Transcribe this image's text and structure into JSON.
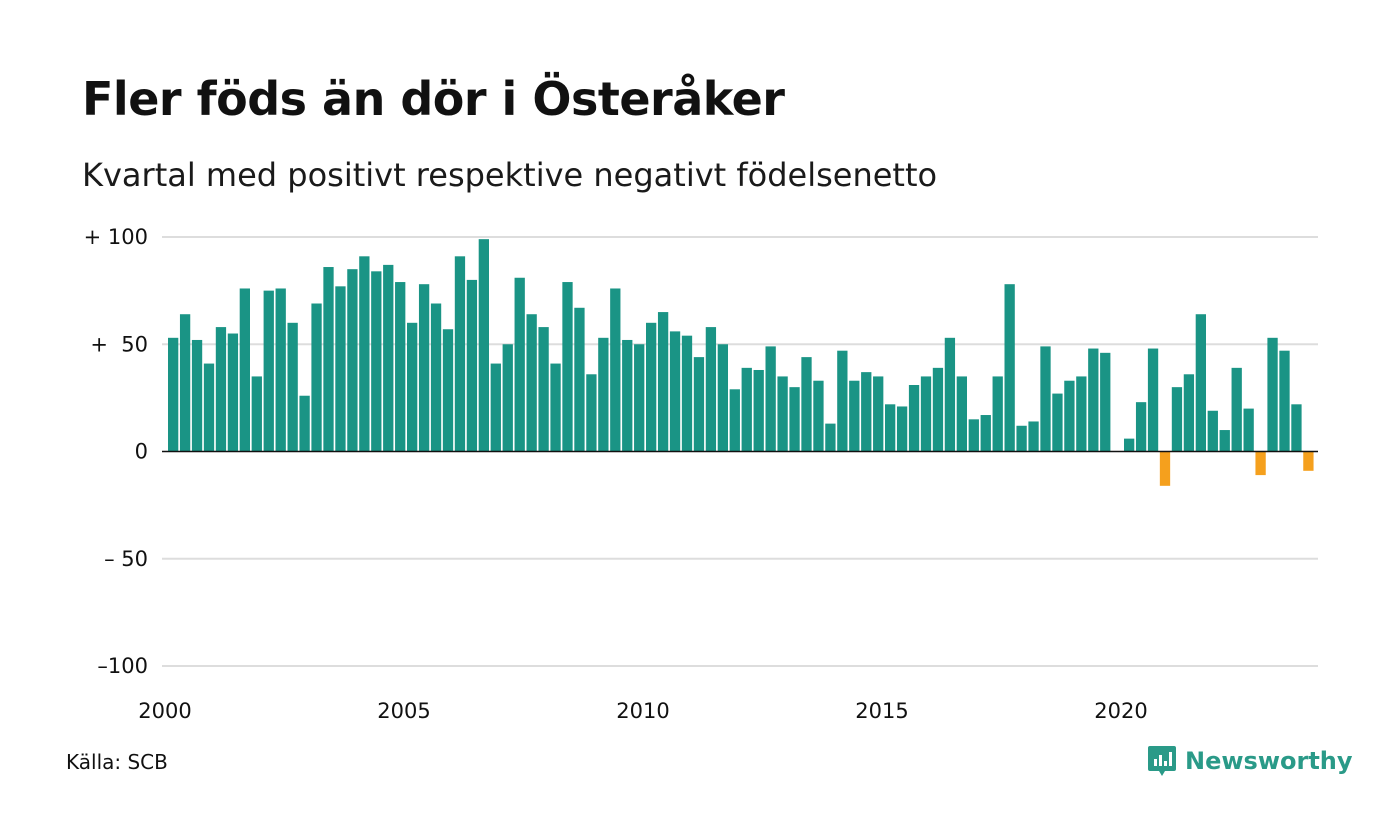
{
  "title": "Fler föds än dör i Österåker",
  "subtitle": "Kvartal med positivt respektive negativt födelsenetto",
  "source": "Källa: SCB",
  "brand": {
    "name": "Newsworthy",
    "icon": "newsworthy-logo-icon",
    "color": "#2a9a88"
  },
  "chart_data": {
    "type": "bar",
    "ylim": [
      -100,
      100
    ],
    "yticks": [
      {
        "value": 100,
        "label": "+ 100"
      },
      {
        "value": 50,
        "label": "+  50"
      },
      {
        "value": 0,
        "label": "0"
      },
      {
        "value": -50,
        "label": "– 50"
      },
      {
        "value": -100,
        "label": "–100"
      }
    ],
    "xticks": [
      {
        "year": 2000,
        "label": "2000"
      },
      {
        "year": 2005,
        "label": "2005"
      },
      {
        "year": 2010,
        "label": "2010"
      },
      {
        "year": 2015,
        "label": "2015"
      },
      {
        "year": 2020,
        "label": "2020"
      }
    ],
    "start": {
      "year": 2000,
      "quarter": 1
    },
    "grid": true,
    "colors": {
      "positive": "#1a9485",
      "negative": "#f5a01d",
      "grid": "#dddddd",
      "zero": "#111111"
    },
    "values": [
      53,
      64,
      52,
      41,
      58,
      55,
      76,
      35,
      75,
      76,
      60,
      26,
      69,
      86,
      77,
      85,
      91,
      84,
      87,
      79,
      60,
      78,
      69,
      57,
      91,
      80,
      99,
      41,
      50,
      81,
      64,
      58,
      41,
      79,
      67,
      36,
      53,
      76,
      52,
      50,
      60,
      65,
      56,
      54,
      44,
      58,
      50,
      29,
      39,
      38,
      49,
      35,
      30,
      44,
      33,
      13,
      47,
      33,
      37,
      35,
      22,
      21,
      31,
      35,
      39,
      53,
      35,
      15,
      17,
      35,
      78,
      12,
      14,
      49,
      27,
      33,
      35,
      48,
      46,
      0,
      6,
      23,
      48,
      -16,
      30,
      36,
      64,
      19,
      10,
      39,
      20,
      -11,
      53,
      47,
      22,
      -9
    ]
  }
}
